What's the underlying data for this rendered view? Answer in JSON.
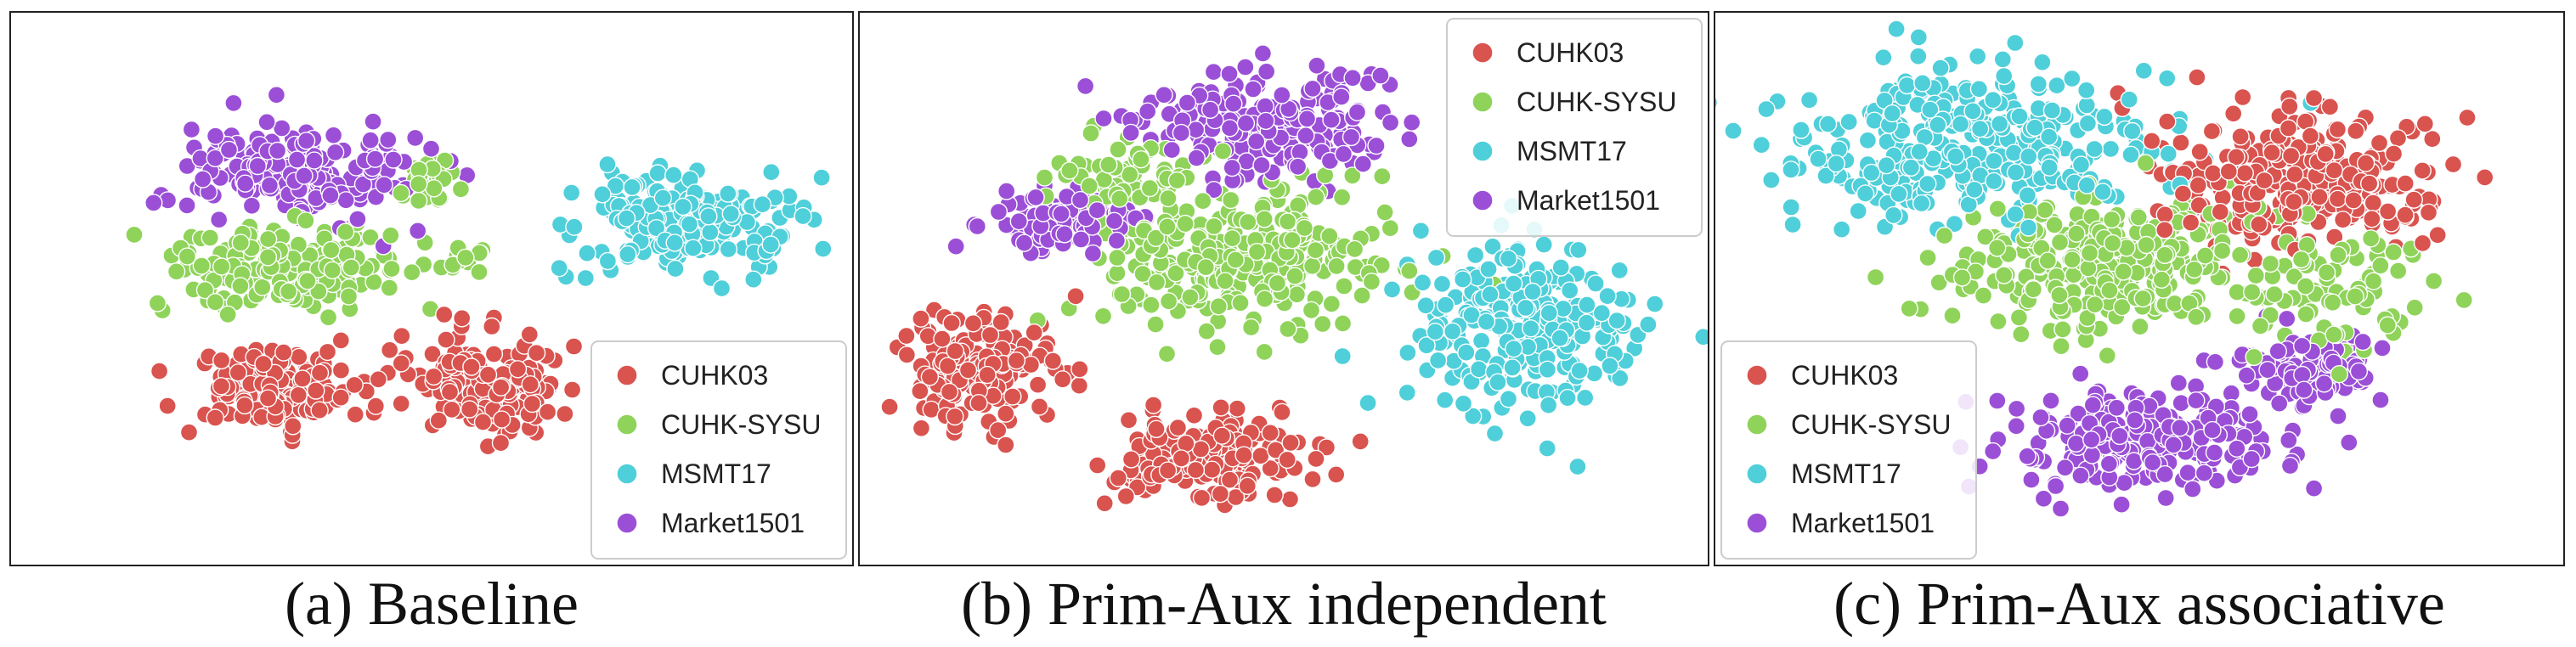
{
  "colors": {
    "CUHK03": "#d9534f",
    "CUHK-SYSU": "#8fd35a",
    "MSMT17": "#4fcfd9",
    "Market1501": "#9b4fd6"
  },
  "chart_data": [
    {
      "type": "scatter",
      "caption": "(a) Baseline",
      "xlabel": "",
      "ylabel": "",
      "grid": false,
      "axes_visible": false,
      "xlim": [
        0,
        100
      ],
      "ylim": [
        0,
        100
      ],
      "legend": {
        "position": "bottom-right",
        "entries": [
          "CUHK03",
          "CUHK-SYSU",
          "MSMT17",
          "Market1501"
        ]
      },
      "series": [
        {
          "name": "CUHK03",
          "color": "#d9534f",
          "clusters": [
            {
              "cx": 30,
              "cy": 30,
              "rx": 11,
              "ry": 8,
              "n": 150
            },
            {
              "cx": 57,
              "cy": 31,
              "rx": 10,
              "ry": 10,
              "n": 150
            }
          ]
        },
        {
          "name": "CUHK-SYSU",
          "color": "#8fd35a",
          "clusters": [
            {
              "cx": 32,
              "cy": 54,
              "rx": 15,
              "ry": 8,
              "n": 200
            },
            {
              "cx": 50,
              "cy": 72,
              "rx": 4,
              "ry": 5,
              "n": 25
            },
            {
              "cx": 54,
              "cy": 56,
              "rx": 3,
              "ry": 3,
              "n": 12
            }
          ]
        },
        {
          "name": "MSMT17",
          "color": "#4fcfd9",
          "clusters": [
            {
              "cx": 82,
              "cy": 63,
              "rx": 14,
              "ry": 9,
              "n": 220
            }
          ]
        },
        {
          "name": "Market1501",
          "color": "#9b4fd6",
          "clusters": [
            {
              "cx": 32,
              "cy": 73,
              "rx": 14,
              "ry": 10,
              "n": 210
            }
          ]
        }
      ]
    },
    {
      "type": "scatter",
      "caption": "(b) Prim-Aux independent",
      "xlabel": "",
      "ylabel": "",
      "grid": false,
      "axes_visible": false,
      "xlim": [
        0,
        100
      ],
      "ylim": [
        0,
        100
      ],
      "legend": {
        "position": "top-right",
        "entries": [
          "CUHK03",
          "CUHK-SYSU",
          "MSMT17",
          "Market1501"
        ]
      },
      "series": [
        {
          "name": "CUHK03",
          "color": "#d9534f",
          "clusters": [
            {
              "cx": 12,
              "cy": 34,
              "rx": 10,
              "ry": 11,
              "n": 180
            },
            {
              "cx": 40,
              "cy": 17,
              "rx": 12,
              "ry": 10,
              "n": 180
            }
          ]
        },
        {
          "name": "CUHK-SYSU",
          "color": "#8fd35a",
          "clusters": [
            {
              "cx": 45,
              "cy": 56,
              "rx": 18,
              "ry": 14,
              "n": 280
            },
            {
              "cx": 30,
              "cy": 72,
              "rx": 10,
              "ry": 8,
              "n": 60
            }
          ]
        },
        {
          "name": "MSMT17",
          "color": "#4fcfd9",
          "clusters": [
            {
              "cx": 79,
              "cy": 44,
              "rx": 14,
              "ry": 17,
              "n": 260
            }
          ]
        },
        {
          "name": "Market1501",
          "color": "#9b4fd6",
          "clusters": [
            {
              "cx": 48,
              "cy": 83,
              "rx": 15,
              "ry": 10,
              "n": 210
            },
            {
              "cx": 23,
              "cy": 63,
              "rx": 10,
              "ry": 6,
              "n": 110
            }
          ]
        }
      ]
    },
    {
      "type": "scatter",
      "caption": "(c) Prim-Aux associative",
      "xlabel": "",
      "ylabel": "",
      "grid": false,
      "axes_visible": false,
      "xlim": [
        0,
        100
      ],
      "ylim": [
        0,
        100
      ],
      "legend": {
        "position": "bottom-left",
        "entries": [
          "CUHK03",
          "CUHK-SYSU",
          "MSMT17",
          "Market1501"
        ]
      },
      "series": [
        {
          "name": "CUHK03",
          "color": "#d9534f",
          "clusters": [
            {
              "cx": 70,
              "cy": 72,
              "rx": 17,
              "ry": 13,
              "n": 300
            }
          ]
        },
        {
          "name": "CUHK-SYSU",
          "color": "#8fd35a",
          "clusters": [
            {
              "cx": 47,
              "cy": 55,
              "rx": 20,
              "ry": 13,
              "n": 300
            },
            {
              "cx": 75,
              "cy": 50,
              "rx": 13,
              "ry": 15,
              "n": 80
            }
          ]
        },
        {
          "name": "MSMT17",
          "color": "#4fcfd9",
          "clusters": [
            {
              "cx": 28,
              "cy": 78,
              "rx": 25,
              "ry": 15,
              "n": 330
            }
          ]
        },
        {
          "name": "Market1501",
          "color": "#9b4fd6",
          "clusters": [
            {
              "cx": 50,
              "cy": 20,
              "rx": 17,
              "ry": 9,
              "n": 230
            },
            {
              "cx": 72,
              "cy": 34,
              "rx": 10,
              "ry": 7,
              "n": 100
            }
          ]
        }
      ]
    }
  ]
}
